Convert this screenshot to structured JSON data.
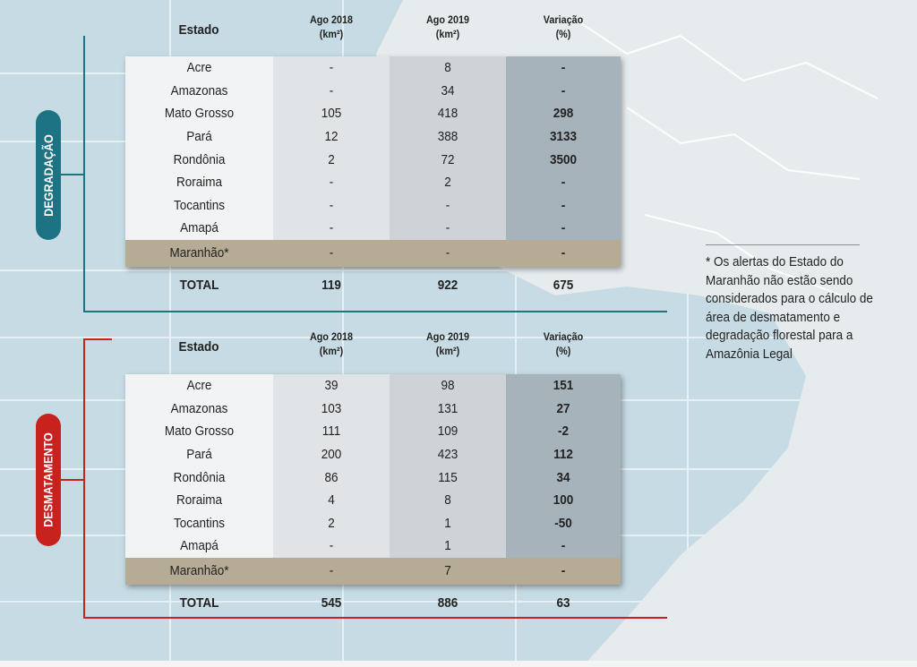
{
  "columns": {
    "state": "Estado",
    "y2018": "Ago 2018",
    "y2019": "Ago 2019",
    "variation": "Variação",
    "unit_km": "(km²)",
    "unit_pct": "(%)"
  },
  "degradacao": {
    "label": "DEGRADAÇÃO",
    "color": "#1d7384",
    "rows": [
      {
        "state": "Acre",
        "y2018": "-",
        "y2019": "8",
        "variation": "-"
      },
      {
        "state": "Amazonas",
        "y2018": "-",
        "y2019": "34",
        "variation": "-"
      },
      {
        "state": "Mato Grosso",
        "y2018": "105",
        "y2019": "418",
        "variation": "298"
      },
      {
        "state": "Pará",
        "y2018": "12",
        "y2019": "388",
        "variation": "3133"
      },
      {
        "state": "Rondônia",
        "y2018": "2",
        "y2019": "72",
        "variation": "3500"
      },
      {
        "state": "Roraima",
        "y2018": "-",
        "y2019": "2",
        "variation": "-"
      },
      {
        "state": "Tocantins",
        "y2018": "-",
        "y2019": "-",
        "variation": "-"
      },
      {
        "state": "Amapá",
        "y2018": "-",
        "y2019": "-",
        "variation": "-"
      },
      {
        "state": "Maranhão*",
        "y2018": "-",
        "y2019": "-",
        "variation": "-"
      }
    ],
    "total": {
      "label": "TOTAL",
      "y2018": "119",
      "y2019": "922",
      "variation": "675"
    }
  },
  "desmatamento": {
    "label": "DESMATAMENTO",
    "color": "#c8221f",
    "rows": [
      {
        "state": "Acre",
        "y2018": "39",
        "y2019": "98",
        "variation": "151"
      },
      {
        "state": "Amazonas",
        "y2018": "103",
        "y2019": "131",
        "variation": "27"
      },
      {
        "state": "Mato Grosso",
        "y2018": "111",
        "y2019": "109",
        "variation": "-2"
      },
      {
        "state": "Pará",
        "y2018": "200",
        "y2019": "423",
        "variation": "112"
      },
      {
        "state": "Rondônia",
        "y2018": "86",
        "y2019": "115",
        "variation": "34"
      },
      {
        "state": "Roraima",
        "y2018": "4",
        "y2019": "8",
        "variation": "100"
      },
      {
        "state": "Tocantins",
        "y2018": "2",
        "y2019": "1",
        "variation": "-50"
      },
      {
        "state": "Amapá",
        "y2018": "-",
        "y2019": "1",
        "variation": "-"
      },
      {
        "state": "Maranhão*",
        "y2018": "-",
        "y2019": "7",
        "variation": "-"
      }
    ],
    "total": {
      "label": "TOTAL",
      "y2018": "545",
      "y2019": "886",
      "variation": "63"
    }
  },
  "footnote": "* Os alertas do Estado do Maranhão não estão sendo considerados para o cálculo de área de desmatamento e degradação florestal para a Amazônia Legal"
}
